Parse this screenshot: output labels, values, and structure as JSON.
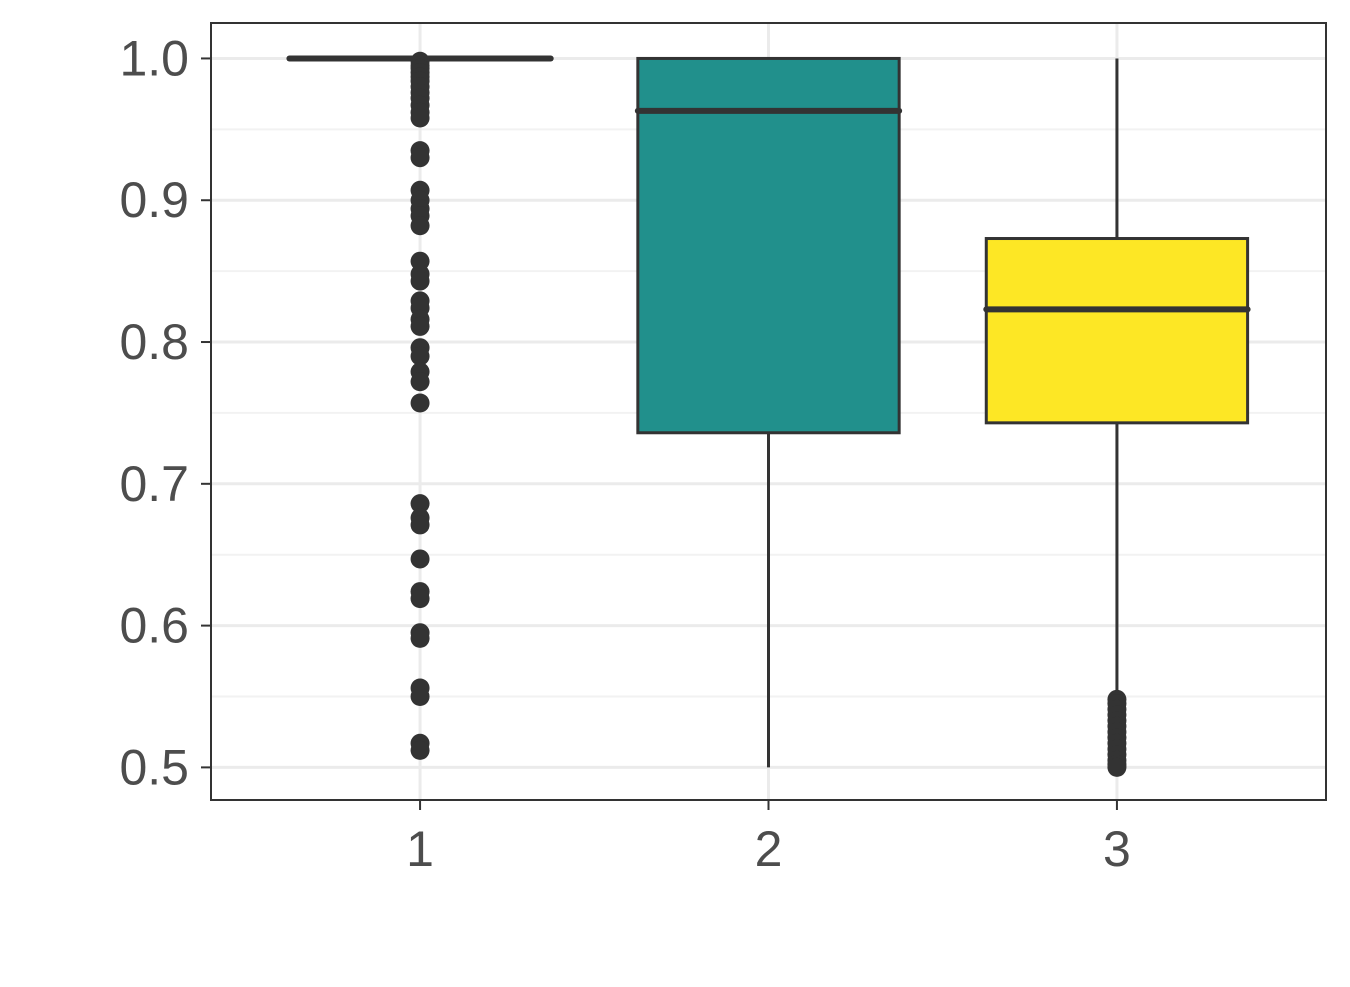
{
  "chart_data": {
    "type": "boxplot",
    "title": "",
    "xlabel": "",
    "ylabel": "",
    "categories": [
      "1",
      "2",
      "3"
    ],
    "ylim": [
      0.477,
      1.025
    ],
    "y_ticks": [
      "0.5",
      "0.6",
      "0.7",
      "0.8",
      "0.9",
      "1.0"
    ],
    "grid": true,
    "boxes": [
      {
        "category": "1",
        "lower_whisker": 1.0,
        "q1": 1.0,
        "median": 1.0,
        "q3": 1.0,
        "upper_whisker": 1.0,
        "fill": "#440154",
        "outliers": [
          0.998,
          0.995,
          0.993,
          0.99,
          0.987,
          0.984,
          0.98,
          0.976,
          0.972,
          0.967,
          0.962,
          0.958,
          0.935,
          0.93,
          0.907,
          0.9,
          0.894,
          0.889,
          0.882,
          0.857,
          0.848,
          0.843,
          0.829,
          0.824,
          0.816,
          0.811,
          0.796,
          0.79,
          0.779,
          0.772,
          0.757,
          0.686,
          0.676,
          0.671,
          0.647,
          0.624,
          0.619,
          0.595,
          0.591,
          0.556,
          0.55,
          0.517,
          0.512
        ]
      },
      {
        "category": "2",
        "lower_whisker": 0.5,
        "q1": 0.736,
        "median": 0.963,
        "q3": 1.0,
        "upper_whisker": 1.0,
        "fill": "#21908C",
        "outliers": []
      },
      {
        "category": "3",
        "lower_whisker": 0.551,
        "q1": 0.743,
        "median": 0.823,
        "q3": 0.873,
        "upper_whisker": 1.0,
        "fill": "#FDE725",
        "outliers": [
          0.548,
          0.545,
          0.541,
          0.537,
          0.533,
          0.529,
          0.525,
          0.521,
          0.517,
          0.513,
          0.509,
          0.505,
          0.502,
          0.5
        ]
      }
    ]
  }
}
